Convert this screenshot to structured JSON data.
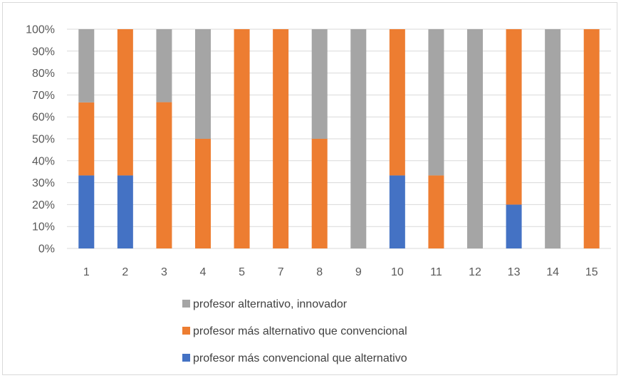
{
  "chart_data": {
    "type": "bar",
    "stacked": true,
    "percent_stacked": true,
    "categories": [
      "1",
      "2",
      "3",
      "4",
      "5",
      "7",
      "8",
      "9",
      "10",
      "11",
      "12",
      "13",
      "14",
      "15"
    ],
    "series": [
      {
        "name": "profesor más convencional que alternativo",
        "color": "#4472c4",
        "values": [
          33.3,
          33.3,
          0,
          0,
          0,
          0,
          0,
          0,
          33.3,
          0,
          0,
          20,
          0,
          0
        ]
      },
      {
        "name": "profesor más alternativo que convencional",
        "color": "#ed7d31",
        "values": [
          33.3,
          66.7,
          66.7,
          50,
          100,
          100,
          50,
          0,
          66.7,
          33.3,
          0,
          80,
          0,
          100
        ]
      },
      {
        "name": "profesor alternativo, innovador",
        "color": "#a5a5a5",
        "values": [
          33.4,
          0,
          33.3,
          50,
          0,
          0,
          50,
          100,
          0,
          66.7,
          100,
          0,
          100,
          0
        ]
      }
    ],
    "y_ticks": [
      "0%",
      "10%",
      "20%",
      "30%",
      "40%",
      "50%",
      "60%",
      "70%",
      "80%",
      "90%",
      "100%"
    ],
    "ylim": [
      0,
      100
    ],
    "grid": true,
    "legend_position": "bottom",
    "legend_order": [
      2,
      1,
      0
    ]
  }
}
